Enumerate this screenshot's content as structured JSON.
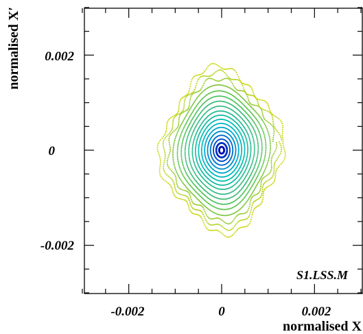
{
  "chart_data": {
    "type": "scatter",
    "title": "",
    "xlabel": "normalised X",
    "ylabel": "normalised X′",
    "xlim": [
      -0.003,
      0.003
    ],
    "ylim": [
      -0.003,
      0.003
    ],
    "xticks": [
      -0.002,
      0,
      0.002
    ],
    "yticks": [
      -0.002,
      0,
      0.002
    ],
    "xtick_labels": [
      "-0.002",
      "0",
      "0.002"
    ],
    "ytick_labels": [
      "-0.002",
      "0",
      "0.002"
    ],
    "annotation": "S1.LSS.M",
    "grid": false,
    "legend": "none",
    "series": [
      {
        "amplitude": 7e-05,
        "color": "#0010b0"
      },
      {
        "amplitude": 0.00015,
        "color": "#0030c0"
      },
      {
        "amplitude": 0.00023,
        "color": "#0050c8"
      },
      {
        "amplitude": 0.00031,
        "color": "#0070cc"
      },
      {
        "amplitude": 0.00039,
        "color": "#0090cc"
      },
      {
        "amplitude": 0.00047,
        "color": "#00a8cc"
      },
      {
        "amplitude": 0.00055,
        "color": "#00b8c0"
      },
      {
        "amplitude": 0.00063,
        "color": "#00bcb0"
      },
      {
        "amplitude": 0.00071,
        "color": "#10b8a0"
      },
      {
        "amplitude": 0.00079,
        "color": "#20b890"
      },
      {
        "amplitude": 0.00088,
        "color": "#30b880"
      },
      {
        "amplitude": 0.00097,
        "color": "#30b870"
      },
      {
        "amplitude": 0.00106,
        "color": "#40bc50"
      },
      {
        "amplitude": 0.00115,
        "color": "#50c040"
      },
      {
        "amplitude": 0.00125,
        "color": "#70c030"
      },
      {
        "amplitude": 0.00135,
        "color": "#90c820"
      },
      {
        "amplitude": 0.00145,
        "color": "#b0d010"
      },
      {
        "amplitude": 0.00155,
        "color": "#c8d400"
      }
    ]
  }
}
